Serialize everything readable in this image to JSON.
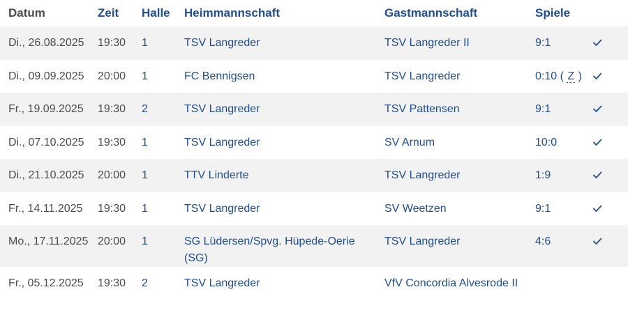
{
  "headers": {
    "date": "Datum",
    "time": "Zeit",
    "hall": "Halle",
    "home": "Heimmannschaft",
    "guest": "Gastmannschaft",
    "games": "Spiele"
  },
  "rows": [
    {
      "date": "Di., 26.08.2025",
      "time": "19:30",
      "hall": "1",
      "home": "TSV Langreder",
      "guest": "TSV Langreder II",
      "score": "9:1",
      "note": "",
      "confirmed": true
    },
    {
      "date": "Di., 09.09.2025",
      "time": "20:00",
      "hall": "1",
      "home": "FC Bennigsen",
      "guest": "TSV Langreder",
      "score": "0:10",
      "note": "Z",
      "confirmed": true
    },
    {
      "date": "Fr., 19.09.2025",
      "time": "19:30",
      "hall": "2",
      "home": "TSV Langreder",
      "guest": "TSV Pattensen",
      "score": "9:1",
      "note": "",
      "confirmed": true
    },
    {
      "date": "Di., 07.10.2025",
      "time": "19:30",
      "hall": "1",
      "home": "TSV Langreder",
      "guest": "SV Arnum",
      "score": "10:0",
      "note": "",
      "confirmed": true
    },
    {
      "date": "Di., 21.10.2025",
      "time": "20:00",
      "hall": "1",
      "home": "TTV Linderte",
      "guest": "TSV Langreder",
      "score": "1:9",
      "note": "",
      "confirmed": true
    },
    {
      "date": "Fr., 14.11.2025",
      "time": "19:30",
      "hall": "1",
      "home": "TSV Langreder",
      "guest": "SV Weetzen",
      "score": "9:1",
      "note": "",
      "confirmed": true
    },
    {
      "date": "Mo., 17.11.2025",
      "time": "20:00",
      "hall": "1",
      "home": "SG Lüdersen/Spvg. Hüpede-Oerie (SG)",
      "guest": "TSV Langreder",
      "score": "4:6",
      "note": "",
      "confirmed": true
    },
    {
      "date": "Fr., 05.12.2025",
      "time": "19:30",
      "hall": "2",
      "home": "TSV Langreder",
      "guest": "VfV Concordia Alvesrode II",
      "score": "",
      "note": "",
      "confirmed": false
    }
  ],
  "icons": {
    "confirmed": "check-icon"
  },
  "colors": {
    "link": "#1f4e93",
    "text": "#4b4b4b",
    "row_alt": "#f2f2f2"
  }
}
